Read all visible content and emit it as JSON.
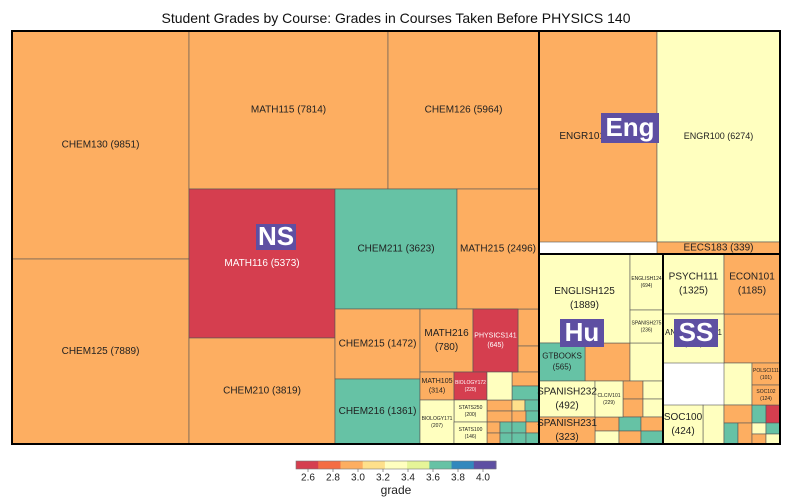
{
  "chart_data": {
    "type": "treemap",
    "title": "Student Grades by Course:  Grades in Courses Taken Before PHYSICS 140",
    "legend": {
      "label": "grade",
      "ticks": [
        "2.6",
        "2.8",
        "3.0",
        "3.2",
        "3.4",
        "3.6",
        "3.8",
        "4.0"
      ],
      "colors": [
        "#d53e4f",
        "#f46d43",
        "#fdae61",
        "#fee08b",
        "#ffffbf",
        "#e6f598",
        "#66c2a5",
        "#3288bd",
        "#5e4fa2"
      ]
    },
    "groups": [
      {
        "name": "NS",
        "courses": [
          {
            "course": "CHEM130",
            "count": 9851,
            "label": "CHEM130 (9851)",
            "color": "#fdae61"
          },
          {
            "course": "CHEM125",
            "count": 7889,
            "label": "CHEM125 (7889)",
            "color": "#fdae61"
          },
          {
            "course": "MATH115",
            "count": 7814,
            "label": "MATH115 (7814)",
            "color": "#fdae61"
          },
          {
            "course": "CHEM126",
            "count": 5964,
            "label": "CHEM126 (5964)",
            "color": "#fdae61"
          },
          {
            "course": "MATH116",
            "count": 5373,
            "label": "MATH116 (5373)",
            "color": "#d53e4f"
          },
          {
            "course": "CHEM210",
            "count": 3819,
            "label": "CHEM210 (3819)",
            "color": "#fdae61"
          },
          {
            "course": "CHEM211",
            "count": 3623,
            "label": "CHEM211 (3623)",
            "color": "#66c2a5"
          },
          {
            "course": "MATH215",
            "count": 2496,
            "label": "MATH215 (2496)",
            "color": "#fdae61"
          },
          {
            "course": "CHEM215",
            "count": 1472,
            "label": "CHEM215 (1472)",
            "color": "#fdae61"
          },
          {
            "course": "CHEM216",
            "count": 1361,
            "label": "CHEM216 (1361)",
            "color": "#66c2a5"
          },
          {
            "course": "MATH216",
            "count": 780,
            "label": "MATH216",
            "sub": "(780)",
            "color": "#fdae61"
          },
          {
            "course": "PHYSICS141",
            "count": 645,
            "label": "PHYSICS141",
            "sub": "(645)",
            "color": "#d53e4f"
          },
          {
            "course": "MATH105",
            "count": 314,
            "label": "MATH105",
            "sub": "(314)",
            "color": "#fdae61"
          },
          {
            "course": "BIOLOGY172",
            "count": 220,
            "label": "BIOLOGY172",
            "sub": "(220)",
            "color": "#d53e4f"
          },
          {
            "course": "EARTH",
            "count": 0,
            "label": "",
            "color": "#ffffbf"
          },
          {
            "course": "STATS250",
            "count": 200,
            "label": "STATS250",
            "sub": "(200)",
            "color": "#ffffbf"
          },
          {
            "course": "BIOLOGY171",
            "count": 207,
            "label": "BIOLOGY171",
            "sub": "(207)",
            "color": "#ffffbf"
          },
          {
            "course": "STATS100",
            "count": 146,
            "label": "STATS100",
            "sub": "(146)",
            "color": "#ffffbf"
          }
        ]
      },
      {
        "name": "Eng",
        "courses": [
          {
            "course": "ENGR101",
            "count": 6512,
            "label": "ENGR101 (6512)",
            "color": "#fdae61"
          },
          {
            "course": "ENGR100",
            "count": 6274,
            "label": "ENGR100 (6274)",
            "color": "#ffffbf"
          },
          {
            "course": "EECS183",
            "count": 339,
            "label": "EECS183 (339)",
            "color": "#fdae61"
          }
        ]
      },
      {
        "name": "Hu",
        "courses": [
          {
            "course": "ENGLISH125",
            "count": 1889,
            "label": "ENGLISH125",
            "sub": "(1889)",
            "color": "#ffffbf"
          },
          {
            "course": "ENGLISH124",
            "count": 694,
            "label": "ENGLISH124",
            "sub": "(694)",
            "color": "#ffffbf"
          },
          {
            "course": "SPANISH275",
            "count": 236,
            "label": "SPANISH275",
            "sub": "(236)",
            "color": "#ffffbf"
          },
          {
            "course": "GTBOOKS",
            "count": 565,
            "label": "GTBOOKS",
            "sub": "(565)",
            "color": "#66c2a5"
          },
          {
            "course": "SPANISH232",
            "count": 492,
            "label": "SPANISH232",
            "sub": "(492)",
            "color": "#ffffbf"
          },
          {
            "course": "CLCIV101",
            "count": 229,
            "label": "CLCIV101",
            "sub": "(229)",
            "color": "#ffffbf"
          },
          {
            "course": "SPANISH231",
            "count": 323,
            "label": "SPANISH231",
            "sub": "(323)",
            "color": "#fdae61"
          }
        ]
      },
      {
        "name": "SS",
        "courses": [
          {
            "course": "PSYCH111",
            "count": 1325,
            "label": "PSYCH111",
            "sub": "(1325)",
            "color": "#ffffbf"
          },
          {
            "course": "ECON101",
            "count": 1185,
            "label": "ECON101",
            "sub": "(1185)",
            "color": "#fdae61"
          },
          {
            "course": "ANTHRCUL101",
            "count": 901,
            "label": "ANTHRCUL101",
            "sub": "(901)",
            "color": "#ffffbf"
          },
          {
            "course": "POLSCI111",
            "count": 101,
            "label": "POLSCI111",
            "sub": "(101)",
            "color": "#fdae61"
          },
          {
            "course": "SOC102",
            "count": 124,
            "label": "SOC102",
            "sub": "(124)",
            "color": "#fdae61"
          },
          {
            "course": "SOC100",
            "count": 424,
            "label": "SOC100",
            "sub": "(424)",
            "color": "#ffffbf"
          }
        ]
      }
    ]
  }
}
